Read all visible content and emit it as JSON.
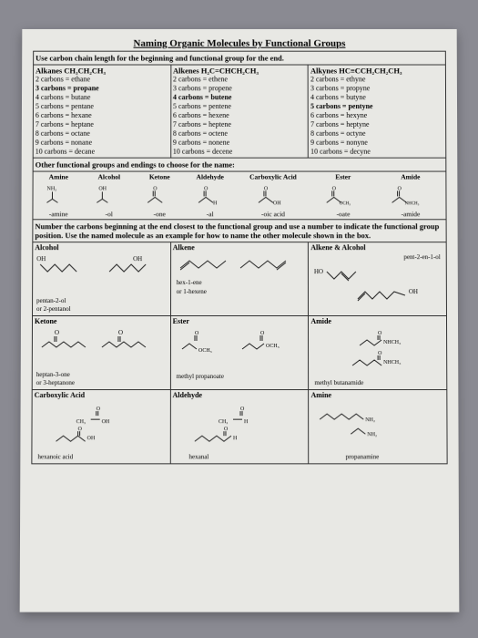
{
  "title": "Naming Organic Molecules by Functional Groups",
  "instr1": "Use carbon chain length for the beginning and functional group for the end.",
  "alkanes": {
    "header": "Alkanes CH₃CH₂CH₃",
    "rows": [
      "2 carbons = ethane",
      "3 carbons = propane",
      "4 carbons = butane",
      "5 carbons = pentane",
      "6 carbons = hexane",
      "7 carbons = heptane",
      "8 carbons = octane",
      "9 carbons = nonane",
      "10 carbons = decane"
    ],
    "bold_idx": 1
  },
  "alkenes": {
    "header": "Alkenes H₂C=CHCH₂CH₃",
    "rows": [
      "2 carbons = ethene",
      "3 carbons = propene",
      "4 carbons = butene",
      "5 carbons = pentene",
      "6 carbons = hexene",
      "7 carbons = heptene",
      "8 carbons = octene",
      "9 carbons = nonene",
      "10 carbons = decene"
    ],
    "bold_idx": 2
  },
  "alkynes": {
    "header": "Alkynes HC≡CCH₂CH₂CH₃",
    "rows": [
      "2 carbons = ethyne",
      "3 carbons = propyne",
      "4 carbons = butyne",
      "5 carbons = pentyne",
      "6 carbons = hexyne",
      "7 carbons = heptyne",
      "8 carbons = octyne",
      "9 carbons = nonyne",
      "10 carbons = decyne"
    ],
    "bold_idx": 3
  },
  "instr2": "Other functional groups and endings to choose for the name:",
  "fg": {
    "labels": [
      "Amine",
      "Alcohol",
      "Ketone",
      "Aldehyde",
      "Carboxylic Acid",
      "Ester",
      "Amide"
    ],
    "suffixes": [
      "-amine",
      "-ol",
      "-one",
      "-al",
      "-oic acid",
      "-oate",
      "-amide"
    ]
  },
  "instr3": "Number the carbons beginning at the end closest to the functional group and use a number to indicate the functional group position. Use the named molecule as an example for how to name the other molecule shown in the box.",
  "examples": {
    "alcohol": {
      "label": "Alcohol",
      "names": [
        "pentan-2-ol",
        "or 2-pentanol"
      ]
    },
    "alkene": {
      "label": "Alkene",
      "names": [
        "hex-1-ene",
        "or 1-hexene"
      ]
    },
    "alkalc": {
      "label": "Alkene & Alcohol",
      "names": [
        "pent-2-en-1-ol"
      ]
    },
    "ketone": {
      "label": "Ketone",
      "names": [
        "heptan-3-one",
        "or 3-heptanone"
      ]
    },
    "ester": {
      "label": "Ester",
      "names": [
        "methyl propanoate"
      ]
    },
    "amide": {
      "label": "Amide",
      "names": [
        "methyl butanamide"
      ]
    },
    "carboxy": {
      "label": "Carboxylic Acid",
      "names": [
        "hexanoic acid"
      ]
    },
    "aldehyde": {
      "label": "Aldehyde",
      "names": [
        "hexanal"
      ]
    },
    "amine2": {
      "label": "Amine",
      "names": [
        "propanamine"
      ]
    }
  },
  "colors": {
    "ink": "#222",
    "paper": "#e8e8e4"
  }
}
